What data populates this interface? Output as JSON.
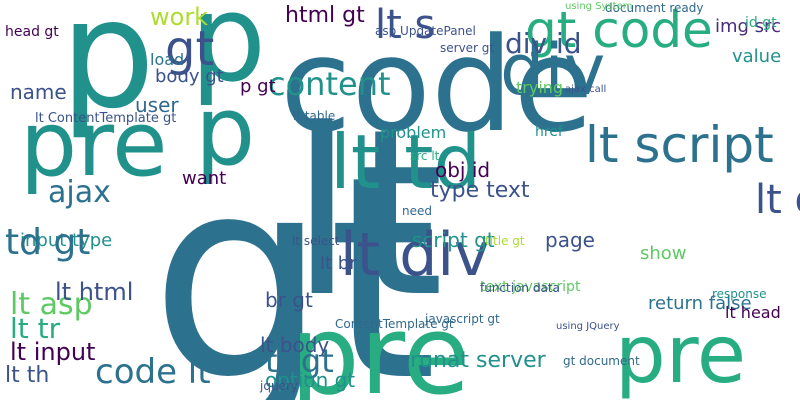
{
  "palette": {
    "teal": "#21918c",
    "steel": "#2c728e",
    "deep_purple": "#440154",
    "indigo": "#3b528b",
    "green": "#27ad81",
    "lime": "#5ec962",
    "yellow_green": "#addc30",
    "yellow": "#fde725",
    "dark_blue": "#31688e",
    "purple": "#472d7b"
  },
  "words": [
    "gt",
    "lt",
    "code",
    "pre",
    "p",
    "pre",
    "code",
    "p",
    "p",
    "pre",
    "gt code",
    "lt td",
    "div",
    "lt div",
    "lt script",
    "lt option",
    "gt",
    "content",
    "work",
    "div id",
    "html gt",
    "lt s",
    "ajax",
    "input type",
    "lt asp",
    "lt html",
    "lt tr",
    "lt input",
    "lt th",
    "code lt",
    "td gt",
    "name",
    "user",
    "body gt",
    "lt ContentTemplate gt",
    "want",
    "problem",
    "obj id",
    "type text",
    "page",
    "show",
    "return false",
    "runat server",
    "tr gt",
    "br gt",
    "lt br",
    "option gt",
    "lt body",
    "script gt",
    "value",
    "img src",
    "id gt",
    "trying",
    "text javascript",
    "function data",
    "lt head",
    "javascript gt",
    "load",
    "p gt",
    "src lt",
    "href",
    "lt table",
    "asp UpdatePanel",
    "document ready",
    "using System",
    "need",
    "lt select",
    "title gt",
    "server gt",
    "ajax call",
    "ContentTemplate gt",
    "using JQuery",
    "gt document",
    "head gt",
    "response",
    "jquery"
  ]
}
